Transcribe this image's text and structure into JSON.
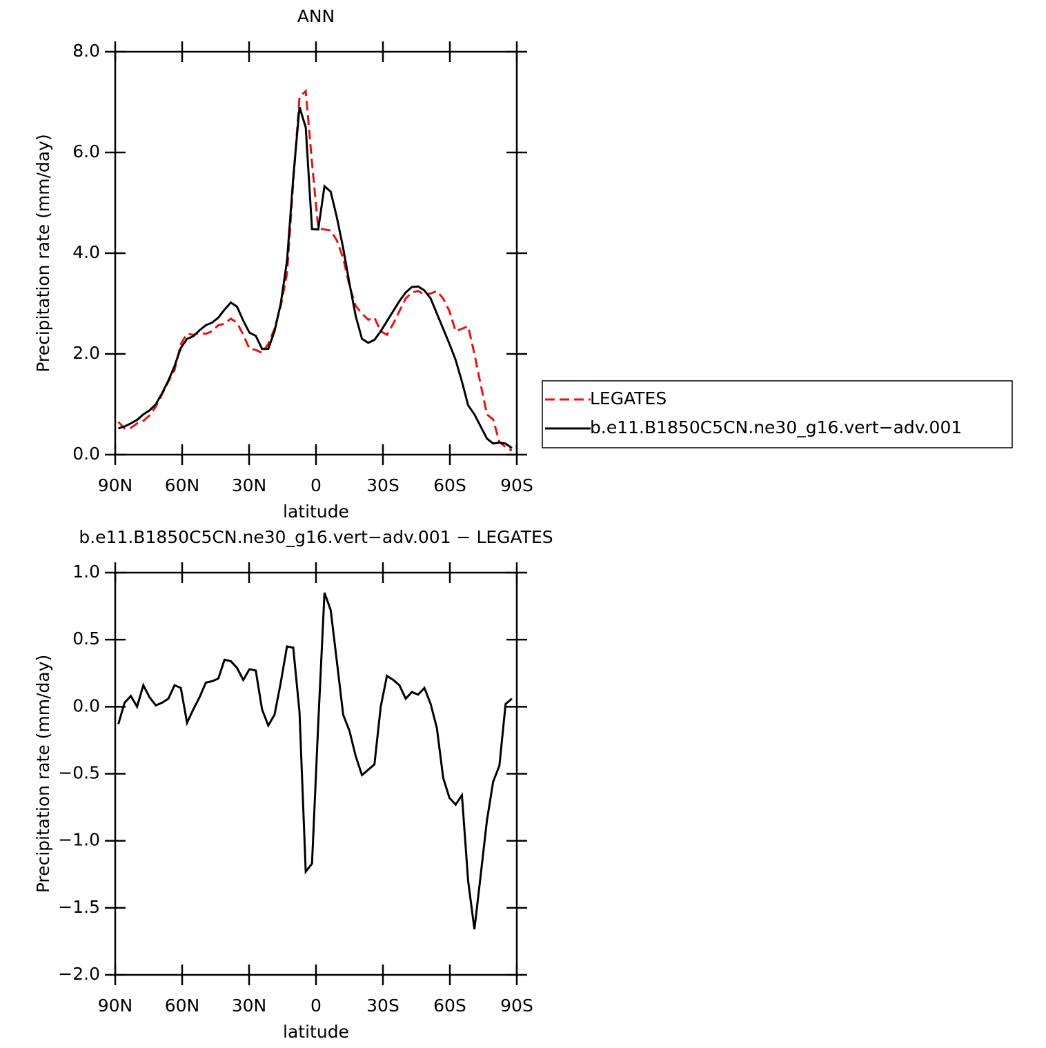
{
  "chart_data": [
    {
      "type": "line",
      "title": "ANN",
      "xlabel": "latitude",
      "ylabel": "Precipitation rate (mm/day)",
      "xlim": [
        90,
        -90
      ],
      "ylim": [
        0,
        8
      ],
      "xticks": [
        {
          "value": 90,
          "label": "90N"
        },
        {
          "value": 60,
          "label": "60N"
        },
        {
          "value": 30,
          "label": "30N"
        },
        0,
        {
          "value": -30,
          "label": "30S"
        },
        {
          "value": -60,
          "label": "60S"
        },
        {
          "value": -90,
          "label": "90S"
        }
      ],
      "yticks": [
        {
          "value": 0,
          "label": "0.0"
        },
        {
          "value": 2,
          "label": "2.0"
        },
        {
          "value": 4,
          "label": "4.0"
        },
        {
          "value": 6,
          "label": "6.0"
        },
        {
          "value": 8,
          "label": "8.0"
        }
      ],
      "legend": "right",
      "x": [
        88.6,
        85.8,
        83.0,
        80.2,
        77.4,
        74.6,
        71.8,
        69.0,
        66.2,
        63.4,
        60.6,
        57.8,
        55.0,
        52.2,
        49.4,
        46.6,
        43.8,
        41.0,
        38.2,
        35.4,
        32.6,
        29.8,
        27.0,
        24.2,
        21.4,
        18.6,
        15.8,
        13.0,
        10.2,
        7.4,
        4.6,
        1.8,
        -1.0,
        -3.8,
        -6.6,
        -9.4,
        -12.2,
        -15.0,
        -17.8,
        -20.6,
        -23.4,
        -26.2,
        -29.0,
        -31.8,
        -34.6,
        -37.4,
        -40.2,
        -43.0,
        -45.8,
        -48.6,
        -51.4,
        -54.2,
        -57.0,
        -59.8,
        -62.6,
        -65.4,
        -68.2,
        -71.0,
        -73.8,
        -76.6,
        -79.4,
        -82.2,
        -85.0,
        -87.8
      ],
      "series": [
        {
          "name": "LEGATES",
          "color": "#e8120c",
          "dashed": true,
          "values": [
            0.65,
            0.52,
            0.53,
            0.62,
            0.67,
            0.78,
            0.95,
            1.2,
            1.45,
            1.68,
            2.2,
            2.4,
            2.38,
            2.42,
            2.4,
            2.45,
            2.57,
            2.6,
            2.7,
            2.62,
            2.38,
            2.1,
            2.08,
            2.02,
            2.2,
            2.5,
            2.95,
            3.6,
            5.4,
            7.1,
            7.22,
            5.8,
            4.5,
            4.47,
            4.45,
            4.25,
            3.9,
            3.35,
            2.95,
            2.8,
            2.68,
            2.72,
            2.45,
            2.38,
            2.6,
            2.85,
            3.1,
            3.22,
            3.25,
            3.18,
            3.2,
            3.25,
            3.1,
            2.85,
            2.45,
            2.5,
            2.55,
            2.0,
            1.4,
            0.8,
            0.7,
            0.25,
            0.15,
            0.08
          ]
        },
        {
          "name": "b.e11.B1850C5CN.ne30_g16.vert−adv.001",
          "color": "#000000",
          "dashed": false,
          "values": [
            0.52,
            0.56,
            0.62,
            0.69,
            0.8,
            0.88,
            1.0,
            1.22,
            1.47,
            1.76,
            2.12,
            2.3,
            2.35,
            2.47,
            2.57,
            2.62,
            2.72,
            2.88,
            3.02,
            2.94,
            2.66,
            2.42,
            2.36,
            2.1,
            2.1,
            2.45,
            3.0,
            3.85,
            5.5,
            6.9,
            6.5,
            4.48,
            4.47,
            5.33,
            5.22,
            4.7,
            4.1,
            3.4,
            2.75,
            2.3,
            2.22,
            2.28,
            2.45,
            2.65,
            2.85,
            3.05,
            3.22,
            3.33,
            3.34,
            3.26,
            3.1,
            2.8,
            2.5,
            2.2,
            1.88,
            1.45,
            0.98,
            0.8,
            0.56,
            0.32,
            0.22,
            0.24,
            0.22,
            0.13
          ]
        }
      ]
    },
    {
      "type": "line",
      "title": "b.e11.B1850C5CN.ne30_g16.vert−adv.001  −  LEGATES",
      "xlabel": "latitude",
      "ylabel": "Precipitation rate (mm/day)",
      "xlim": [
        90,
        -90
      ],
      "ylim": [
        -2,
        1
      ],
      "xticks": [
        {
          "value": 90,
          "label": "90N"
        },
        {
          "value": 60,
          "label": "60N"
        },
        {
          "value": 30,
          "label": "30N"
        },
        0,
        {
          "value": -30,
          "label": "30S"
        },
        {
          "value": -60,
          "label": "60S"
        },
        {
          "value": -90,
          "label": "90S"
        }
      ],
      "yticks": [
        {
          "value": -2,
          "label": "−2.0"
        },
        {
          "value": -1.5,
          "label": "−1.5"
        },
        {
          "value": -1,
          "label": "−1.0"
        },
        {
          "value": -0.5,
          "label": "−0.5"
        },
        {
          "value": 0,
          "label": "0.0"
        },
        {
          "value": 0.5,
          "label": "0.5"
        },
        {
          "value": 1,
          "label": "1.0"
        }
      ],
      "x": [
        88.6,
        85.8,
        83.0,
        80.2,
        77.4,
        74.6,
        71.8,
        69.0,
        66.2,
        63.4,
        60.6,
        57.8,
        55.0,
        52.2,
        49.4,
        46.6,
        43.8,
        41.0,
        38.2,
        35.4,
        32.6,
        29.8,
        27.0,
        24.2,
        21.4,
        18.6,
        15.8,
        13.0,
        10.2,
        7.4,
        4.6,
        1.8,
        -1.0,
        -3.8,
        -6.6,
        -9.4,
        -12.2,
        -15.0,
        -17.8,
        -20.6,
        -23.4,
        -26.2,
        -29.0,
        -31.8,
        -34.6,
        -37.4,
        -40.2,
        -43.0,
        -45.8,
        -48.6,
        -51.4,
        -54.2,
        -57.0,
        -59.8,
        -62.6,
        -65.4,
        -68.2,
        -71.0,
        -73.8,
        -76.6,
        -79.4,
        -82.2,
        -85.0,
        -87.8
      ],
      "series": [
        {
          "color": "#000000",
          "dashed": false,
          "values": [
            -0.13,
            0.03,
            0.08,
            0.0,
            0.16,
            0.07,
            0.01,
            0.03,
            0.06,
            0.16,
            0.14,
            -0.12,
            -0.02,
            0.07,
            0.18,
            0.19,
            0.21,
            0.35,
            0.34,
            0.29,
            0.2,
            0.28,
            0.27,
            -0.02,
            -0.14,
            -0.06,
            0.18,
            0.45,
            0.44,
            -0.04,
            -1.23,
            -1.17,
            -0.13,
            0.85,
            0.72,
            0.33,
            -0.06,
            -0.18,
            -0.37,
            -0.51,
            -0.47,
            -0.43,
            0.0,
            0.23,
            0.2,
            0.16,
            0.06,
            0.11,
            0.09,
            0.14,
            0.02,
            -0.16,
            -0.53,
            -0.68,
            -0.73,
            -0.66,
            -1.3,
            -1.66,
            -1.26,
            -0.85,
            -0.56,
            -0.44,
            0.02,
            0.06
          ]
        }
      ]
    }
  ]
}
